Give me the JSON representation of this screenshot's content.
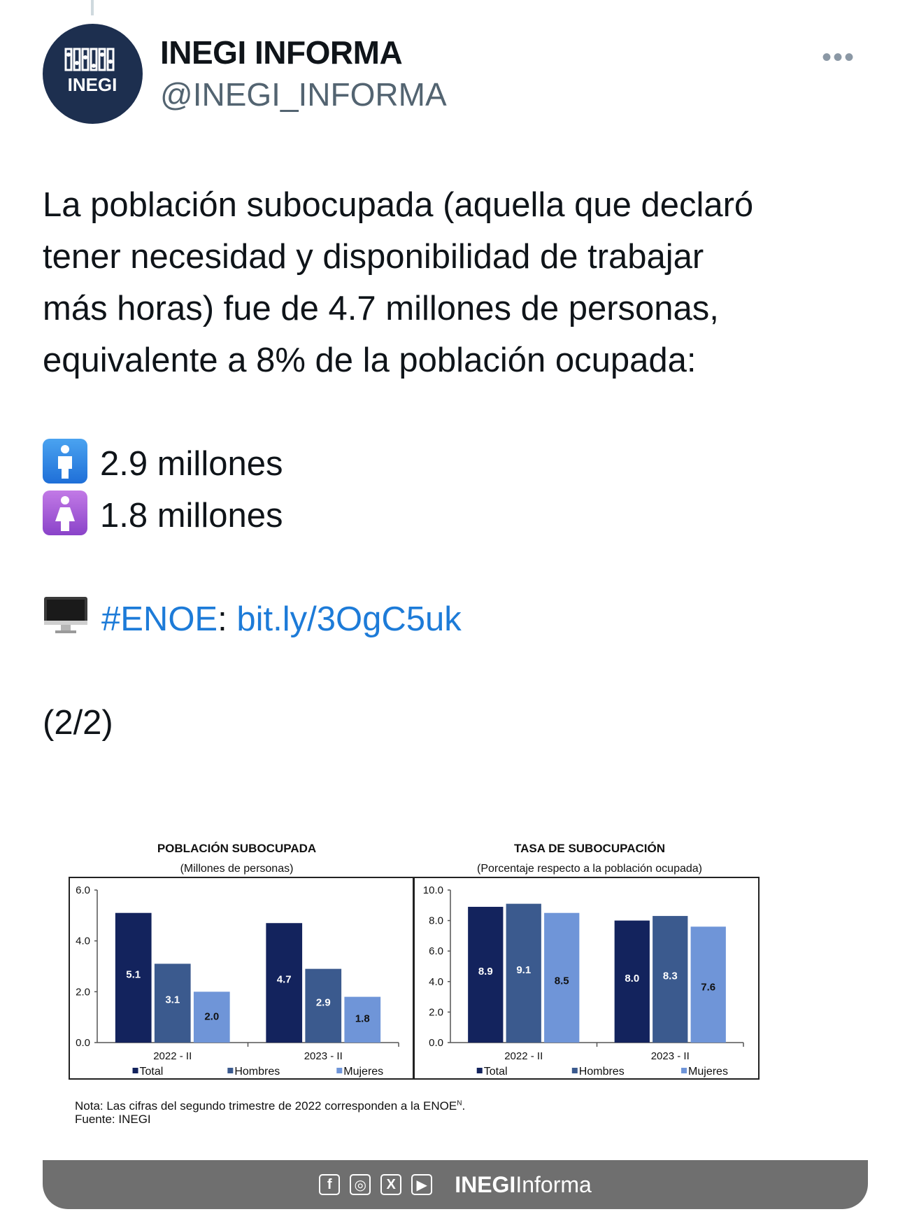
{
  "account": {
    "name": "INEGI INFORMA",
    "handle": "@INEGI_INFORMA",
    "avatar_text": "INEGI",
    "more_icon": "more-icon"
  },
  "tweet": {
    "line1": "La población subocupada (aquella que declaró",
    "line2": "tener necesidad y disponibilidad de trabajar",
    "line3": "más horas) fue de 4.7 millones de personas,",
    "line4": "equivalente a 8% de la población ocupada:",
    "men_value": "2.9 millones",
    "women_value": "1.8 millones",
    "hashtag": "#ENOE",
    "colon": ":",
    "link": "bit.ly/3OgC5uk",
    "thread_count": "(2/2)"
  },
  "chart_data": [
    {
      "type": "bar",
      "title": "POBLACIÓN SUBOCUPADA",
      "subtitle": "(Millones de personas)",
      "categories": [
        "2022 - II",
        "2023 - II"
      ],
      "series": [
        {
          "name": "Total",
          "values": [
            5.1,
            4.7
          ],
          "color": "#13235d"
        },
        {
          "name": "Hombres",
          "values": [
            3.1,
            2.9
          ],
          "color": "#3b5a8e"
        },
        {
          "name": "Mujeres",
          "values": [
            2.0,
            1.8
          ],
          "color": "#6f95d8"
        }
      ],
      "yticks": [
        "6.0",
        "4.0",
        "2.0",
        "0.0"
      ],
      "ylim": [
        0,
        6
      ],
      "legend": "bottom"
    },
    {
      "type": "bar",
      "title": "TASA DE SUBOCUPACIÓN",
      "subtitle": "(Porcentaje respecto a la población ocupada)",
      "categories": [
        "2022 - II",
        "2023 - II"
      ],
      "series": [
        {
          "name": "Total",
          "values": [
            8.9,
            8.0
          ],
          "color": "#13235d"
        },
        {
          "name": "Hombres",
          "values": [
            9.1,
            8.3
          ],
          "color": "#3b5a8e"
        },
        {
          "name": "Mujeres",
          "values": [
            8.5,
            7.6
          ],
          "color": "#6f95d8"
        }
      ],
      "yticks": [
        "10.0",
        "8.0",
        "6.0",
        "4.0",
        "2.0",
        "0.0"
      ],
      "ylim": [
        0,
        10
      ],
      "legend": "bottom"
    }
  ],
  "notes": {
    "nota": "Nota: Las cifras del segundo trimestre de 2022 corresponden a la ENOE",
    "nota_sup": "N",
    "nota_end": ".",
    "fuente": "Fuente: INEGI"
  },
  "footer": {
    "icons": [
      "facebook-icon",
      "instagram-icon",
      "x-icon",
      "youtube-icon"
    ],
    "brand_bold": "INEGI",
    "brand_rest": "Informa"
  }
}
